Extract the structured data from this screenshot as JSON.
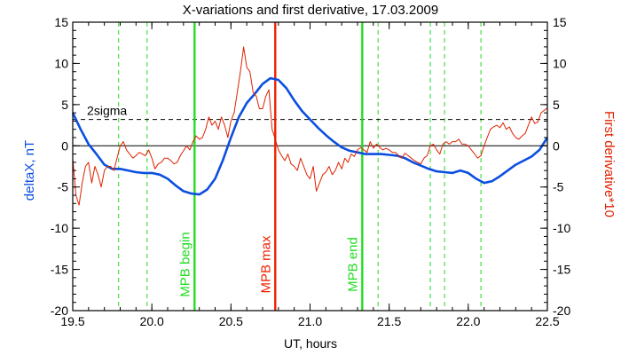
{
  "chart_data": {
    "type": "line",
    "title": "X-variations and first derivative, 17.03.2009",
    "xlabel": "UT, hours",
    "ylabel_left": "deltaX, nT",
    "ylabel_right": "First derivative*10",
    "xlim": [
      19.5,
      22.5
    ],
    "ylim": [
      -20,
      15
    ],
    "x_ticks": [
      19.5,
      20.0,
      20.5,
      21.0,
      21.5,
      22.0,
      22.5
    ],
    "x_tick_labels": [
      "19.5",
      "20.0",
      "20.5",
      "21.0",
      "21.5",
      "22.0",
      "22.5"
    ],
    "y_ticks": [
      -20,
      -15,
      -10,
      -5,
      0,
      5,
      10,
      15
    ],
    "y_tick_labels": [
      "-20",
      "-15",
      "-10",
      "-5",
      "0",
      "5",
      "10",
      "15"
    ],
    "threshold": {
      "label": "2sigma",
      "value": 3.2
    },
    "vertical_lines": [
      {
        "x": 20.27,
        "label": "MPB begin",
        "color": "#22dd22"
      },
      {
        "x": 20.78,
        "label": "MPB max",
        "color": "#ee2200"
      },
      {
        "x": 21.33,
        "label": "MPB end",
        "color": "#22dd22"
      }
    ],
    "dashed_vlines": [
      19.79,
      19.97,
      21.43,
      21.76,
      21.85,
      22.08
    ],
    "dashed_vline_color": "#22dd22",
    "series": [
      {
        "color": "#0b4fe0",
        "x": [
          19.5,
          19.55,
          19.6,
          19.65,
          19.7,
          19.75,
          19.8,
          19.85,
          19.9,
          19.95,
          20.0,
          20.05,
          20.1,
          20.15,
          20.2,
          20.25,
          20.3,
          20.35,
          20.4,
          20.45,
          20.5,
          20.55,
          20.6,
          20.65,
          20.7,
          20.75,
          20.8,
          20.85,
          20.9,
          20.95,
          21.0,
          21.05,
          21.1,
          21.15,
          21.2,
          21.25,
          21.3,
          21.35,
          21.4,
          21.45,
          21.5,
          21.55,
          21.6,
          21.65,
          21.7,
          21.75,
          21.8,
          21.85,
          21.9,
          21.95,
          22.0,
          22.05,
          22.1,
          22.15,
          22.2,
          22.25,
          22.3,
          22.35,
          22.4,
          22.45,
          22.5
        ],
        "values": [
          4.0,
          2.0,
          0.2,
          -1.0,
          -2.3,
          -2.8,
          -2.8,
          -3.0,
          -3.2,
          -3.3,
          -3.3,
          -3.5,
          -4.0,
          -4.8,
          -5.5,
          -5.8,
          -5.9,
          -5.3,
          -4.0,
          -1.7,
          1.0,
          3.5,
          5.2,
          6.3,
          7.5,
          8.2,
          8.0,
          7.0,
          5.5,
          4.2,
          3.2,
          2.2,
          1.3,
          0.5,
          -0.2,
          -0.6,
          -0.8,
          -1.0,
          -1.0,
          -1.0,
          -1.1,
          -1.2,
          -1.5,
          -2.0,
          -2.4,
          -2.8,
          -3.1,
          -3.2,
          -3.3,
          -3.0,
          -3.3,
          -4.0,
          -4.5,
          -4.3,
          -3.7,
          -3.0,
          -2.3,
          -1.8,
          -1.3,
          -0.5,
          1.0
        ]
      },
      {
        "color": "#dd2200",
        "x": [
          19.5,
          19.52,
          19.54,
          19.56,
          19.58,
          19.6,
          19.62,
          19.64,
          19.66,
          19.68,
          19.7,
          19.72,
          19.74,
          19.76,
          19.78,
          19.8,
          19.82,
          19.84,
          19.86,
          19.88,
          19.9,
          19.92,
          19.94,
          19.96,
          19.98,
          20.0,
          20.02,
          20.04,
          20.06,
          20.08,
          20.1,
          20.12,
          20.14,
          20.16,
          20.18,
          20.2,
          20.22,
          20.24,
          20.26,
          20.28,
          20.3,
          20.32,
          20.34,
          20.36,
          20.38,
          20.4,
          20.42,
          20.44,
          20.46,
          20.48,
          20.5,
          20.52,
          20.54,
          20.56,
          20.58,
          20.6,
          20.62,
          20.64,
          20.66,
          20.68,
          20.7,
          20.72,
          20.74,
          20.76,
          20.78,
          20.8,
          20.82,
          20.84,
          20.86,
          20.88,
          20.9,
          20.92,
          20.94,
          20.96,
          20.98,
          21.0,
          21.02,
          21.04,
          21.06,
          21.08,
          21.1,
          21.12,
          21.14,
          21.16,
          21.18,
          21.2,
          21.22,
          21.24,
          21.26,
          21.28,
          21.3,
          21.32,
          21.34,
          21.36,
          21.38,
          21.4,
          21.42,
          21.44,
          21.46,
          21.48,
          21.5,
          21.52,
          21.54,
          21.56,
          21.58,
          21.6,
          21.62,
          21.64,
          21.66,
          21.68,
          21.7,
          21.72,
          21.74,
          21.76,
          21.78,
          21.8,
          21.82,
          21.84,
          21.86,
          21.88,
          21.9,
          21.92,
          21.94,
          21.96,
          21.98,
          22.0,
          22.02,
          22.04,
          22.06,
          22.08,
          22.1,
          22.12,
          22.14,
          22.16,
          22.18,
          22.2,
          22.22,
          22.24,
          22.26,
          22.28,
          22.3,
          22.32,
          22.34,
          22.36,
          22.38,
          22.4,
          22.42,
          22.44,
          22.46,
          22.48,
          22.5
        ],
        "values": [
          -1.5,
          -6.0,
          -7.2,
          -4.5,
          -2.5,
          -2.0,
          -4.5,
          -2.5,
          -3.5,
          -5.0,
          -3.0,
          -2.5,
          -2.5,
          -3.0,
          -1.5,
          0.0,
          0.5,
          -0.5,
          -1.0,
          -1.5,
          -1.2,
          -0.8,
          -1.0,
          -1.2,
          -0.5,
          -1.5,
          -2.8,
          -2.2,
          -2.0,
          -1.5,
          -1.5,
          -1.8,
          -2.2,
          -2.0,
          -1.2,
          -0.6,
          0.0,
          -0.5,
          0.5,
          1.2,
          0.8,
          1.0,
          2.0,
          3.5,
          2.5,
          3.0,
          2.0,
          3.5,
          2.5,
          1.0,
          3.0,
          4.0,
          6.5,
          9.0,
          12.0,
          9.5,
          9.0,
          6.5,
          6.0,
          4.5,
          4.5,
          6.0,
          6.8,
          2.0,
          0.8,
          -0.5,
          -1.2,
          -1.8,
          -1.0,
          -2.2,
          -2.5,
          -3.0,
          -1.5,
          -2.5,
          -3.5,
          -4.0,
          -2.5,
          -5.5,
          -4.5,
          -3.5,
          -3.2,
          -2.5,
          -3.5,
          -3.0,
          -2.0,
          -2.8,
          -1.5,
          -2.0,
          -1.0,
          -1.3,
          -0.5,
          -0.2,
          -0.5,
          -0.8,
          0.5,
          -0.3,
          0.2,
          -0.2,
          -0.5,
          -0.3,
          -0.5,
          -0.8,
          -0.8,
          -1.2,
          -1.5,
          -0.9,
          -1.2,
          -1.5,
          -1.8,
          -2.0,
          -2.2,
          -1.5,
          -1.2,
          0.0,
          0.2,
          -0.5,
          -1.0,
          0.2,
          0.5,
          0.2,
          0.5,
          0.5,
          0.8,
          0.2,
          0.2,
          0.0,
          -0.5,
          -1.0,
          -1.5,
          -1.2,
          0.0,
          1.0,
          2.0,
          2.3,
          2.5,
          2.2,
          2.8,
          2.0,
          2.3,
          1.5,
          1.0,
          0.8,
          1.2,
          1.5,
          2.5,
          3.5,
          2.7,
          2.9,
          4.0,
          4.3,
          4.6
        ]
      }
    ]
  }
}
